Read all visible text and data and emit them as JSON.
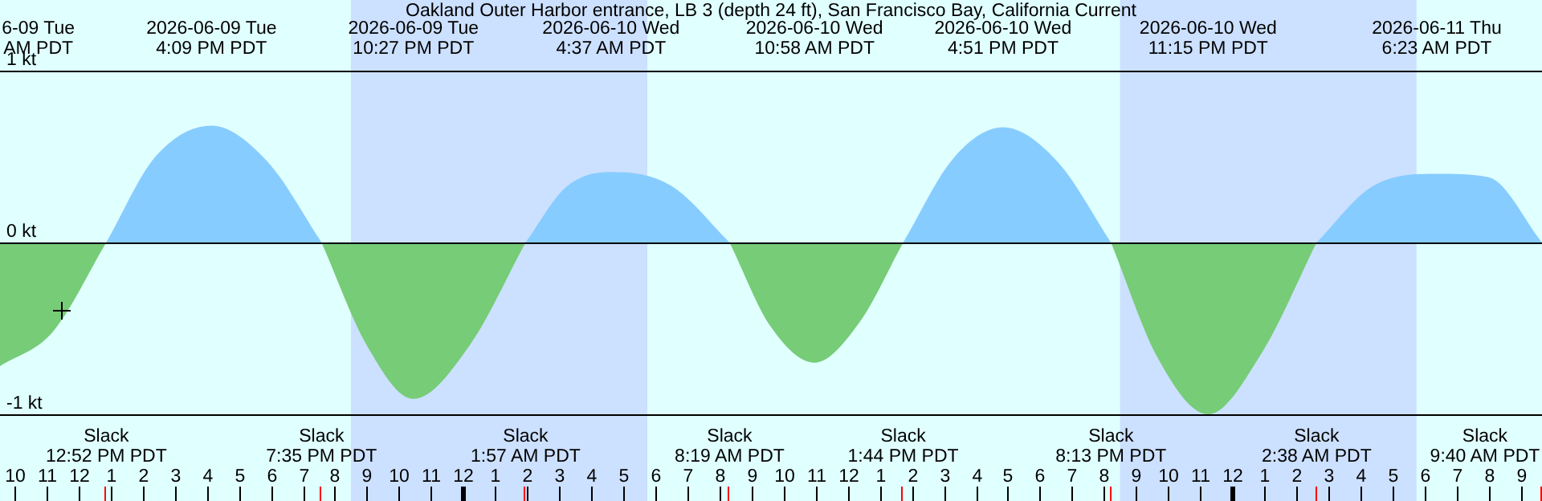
{
  "chart_data": {
    "type": "area",
    "title": "Oakland Outer Harbor entrance, LB 3 (depth 24 ft), San Francisco Bay, California Current",
    "x": [
      "2026-06-09T09:33",
      "2026-06-09T11:12",
      "2026-06-09T12:52",
      "2026-06-09T14:24",
      "2026-06-09T16:09",
      "2026-06-09T17:54",
      "2026-06-09T19:35",
      "2026-06-09T21:00",
      "2026-06-09T22:27",
      "2026-06-10T00:12",
      "2026-06-10T01:57",
      "2026-06-10T03:12",
      "2026-06-10T04:37",
      "2026-06-10T06:30",
      "2026-06-10T08:19",
      "2026-06-10T09:36",
      "2026-06-10T10:58",
      "2026-06-10T12:21",
      "2026-06-10T13:44",
      "2026-06-10T15:18",
      "2026-06-10T16:51",
      "2026-06-10T18:33",
      "2026-06-10T20:13",
      "2026-06-10T21:42",
      "2026-06-10T23:15",
      "2026-06-11T00:54",
      "2026-06-11T02:38",
      "2026-06-11T04:24",
      "2026-06-11T06:23",
      "2026-06-11T08:00",
      "2026-06-11T09:40"
    ],
    "series": [
      {
        "color": "#87ccff",
        "values": [
          null,
          null,
          0,
          0.5,
          0.68,
          0.47,
          0,
          null,
          null,
          null,
          0,
          0.32,
          0.41,
          0.33,
          0,
          null,
          null,
          null,
          0,
          0.49,
          0.67,
          0.47,
          0,
          null,
          null,
          null,
          0,
          0.33,
          0.4,
          0.38,
          0
        ]
      },
      {
        "color": "#77cc77",
        "values": [
          -0.72,
          -0.52,
          0,
          null,
          null,
          null,
          0,
          -0.6,
          -0.91,
          -0.6,
          0,
          null,
          null,
          null,
          0,
          -0.49,
          -0.7,
          -0.47,
          0,
          null,
          null,
          null,
          0,
          -0.68,
          -1.0,
          -0.65,
          0,
          null,
          null,
          null,
          null
        ]
      }
    ],
    "xlim": [
      "2026-06-09T09:33",
      "2026-06-11T09:40"
    ],
    "ylim": [
      -1,
      1
    ],
    "yticks": [
      {
        "value": 1,
        "label": "1 kt"
      },
      {
        "value": 0,
        "label": "0 kt"
      },
      {
        "value": -1,
        "label": "-1 kt"
      }
    ],
    "xticks": [
      {
        "value": "2026-06-09T10:00",
        "label": "10"
      },
      {
        "value": "2026-06-09T11:00",
        "label": "11"
      },
      {
        "value": "2026-06-09T12:00",
        "label": "12"
      },
      {
        "value": "2026-06-09T13:00",
        "label": "1"
      },
      {
        "value": "2026-06-09T14:00",
        "label": "2"
      },
      {
        "value": "2026-06-09T15:00",
        "label": "3"
      },
      {
        "value": "2026-06-09T16:00",
        "label": "4"
      },
      {
        "value": "2026-06-09T17:00",
        "label": "5"
      },
      {
        "value": "2026-06-09T18:00",
        "label": "6"
      },
      {
        "value": "2026-06-09T19:00",
        "label": "7"
      },
      {
        "value": "2026-06-09T20:00",
        "label": "8"
      },
      {
        "value": "2026-06-09T21:00",
        "label": "9"
      },
      {
        "value": "2026-06-09T22:00",
        "label": "10"
      },
      {
        "value": "2026-06-09T23:00",
        "label": "11"
      },
      {
        "value": "2026-06-10T00:00",
        "label": "12"
      },
      {
        "value": "2026-06-10T01:00",
        "label": "1"
      },
      {
        "value": "2026-06-10T02:00",
        "label": "2"
      },
      {
        "value": "2026-06-10T03:00",
        "label": "3"
      },
      {
        "value": "2026-06-10T04:00",
        "label": "4"
      },
      {
        "value": "2026-06-10T05:00",
        "label": "5"
      },
      {
        "value": "2026-06-10T06:00",
        "label": "6"
      },
      {
        "value": "2026-06-10T07:00",
        "label": "7"
      },
      {
        "value": "2026-06-10T08:00",
        "label": "8"
      },
      {
        "value": "2026-06-10T09:00",
        "label": "9"
      },
      {
        "value": "2026-06-10T10:00",
        "label": "10"
      },
      {
        "value": "2026-06-10T11:00",
        "label": "11"
      },
      {
        "value": "2026-06-10T12:00",
        "label": "12"
      },
      {
        "value": "2026-06-10T13:00",
        "label": "1"
      },
      {
        "value": "2026-06-10T14:00",
        "label": "2"
      },
      {
        "value": "2026-06-10T15:00",
        "label": "3"
      },
      {
        "value": "2026-06-10T16:00",
        "label": "4"
      },
      {
        "value": "2026-06-10T17:00",
        "label": "5"
      },
      {
        "value": "2026-06-10T18:00",
        "label": "6"
      },
      {
        "value": "2026-06-10T19:00",
        "label": "7"
      },
      {
        "value": "2026-06-10T20:00",
        "label": "8"
      },
      {
        "value": "2026-06-10T21:00",
        "label": "9"
      },
      {
        "value": "2026-06-10T22:00",
        "label": "10"
      },
      {
        "value": "2026-06-10T23:00",
        "label": "11"
      },
      {
        "value": "2026-06-11T00:00",
        "label": "12"
      },
      {
        "value": "2026-06-11T01:00",
        "label": "1"
      },
      {
        "value": "2026-06-11T02:00",
        "label": "2"
      },
      {
        "value": "2026-06-11T03:00",
        "label": "3"
      },
      {
        "value": "2026-06-11T04:00",
        "label": "4"
      },
      {
        "value": "2026-06-11T05:00",
        "label": "5"
      },
      {
        "value": "2026-06-11T06:00",
        "label": "6"
      },
      {
        "value": "2026-06-11T07:00",
        "label": "7"
      },
      {
        "value": "2026-06-11T08:00",
        "label": "8"
      },
      {
        "value": "2026-06-11T09:00",
        "label": "9"
      }
    ],
    "grid": "y",
    "bands": [
      {
        "axis": "x",
        "from": "2026-06-09T20:30",
        "to": "2026-06-10T05:45",
        "color": "#cce0ff"
      },
      {
        "axis": "x",
        "from": "2026-06-10T20:30",
        "to": "2026-06-11T05:45",
        "color": "#cce0ff"
      }
    ],
    "annotations": [
      "6-09 Tue\nAM PDT",
      "2026-06-09 Tue\n4:09 PM PDT",
      "2026-06-09 Tue\n10:27 PM PDT",
      "2026-06-10 Wed\n4:37 AM PDT",
      "2026-06-10 Wed\n10:58 AM PDT",
      "2026-06-10 Wed\n4:51 PM PDT",
      "2026-06-10 Wed\n11:15 PM PDT",
      "2026-06-11 Thu\n6:23 AM PDT",
      "Slack\n12:52 PM PDT",
      "Slack\n7:35 PM PDT",
      "Slack\n1:57 AM PDT",
      "Slack\n8:19 AM PDT",
      "Slack\n1:44 PM PDT",
      "Slack\n8:13 PM PDT",
      "Slack\n2:38 AM PDT",
      "Slack\n9:40 AM PDT"
    ]
  }
}
